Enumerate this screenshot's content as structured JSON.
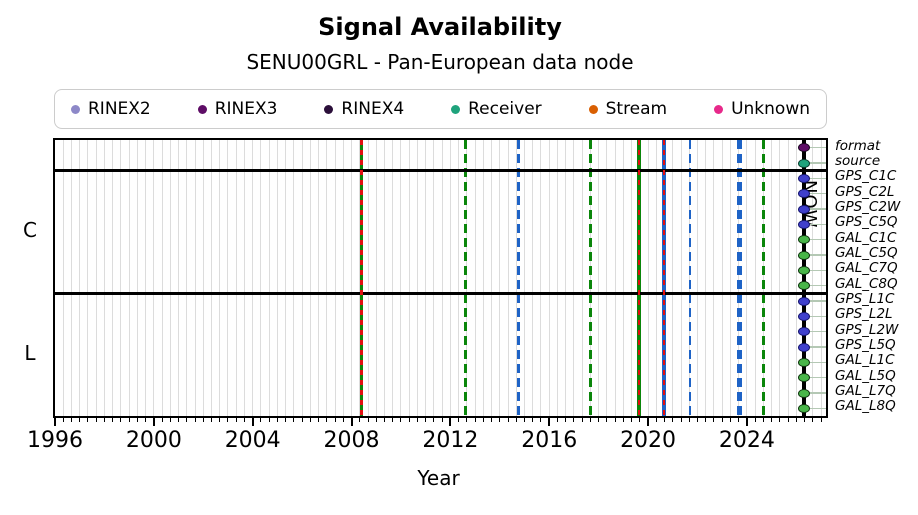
{
  "title": "Signal Availability",
  "subtitle": "SENU00GRL - Pan-European data node",
  "xlabel": "Year",
  "now_label": "NOW",
  "legend": {
    "items": [
      {
        "label": "RINEX2",
        "color": "#8d88c8"
      },
      {
        "label": "RINEX3",
        "color": "#5e0d66"
      },
      {
        "label": "RINEX4",
        "color": "#2b0f3a"
      },
      {
        "label": "Receiver",
        "color": "#1fa37c"
      },
      {
        "label": "Stream",
        "color": "#d95f02"
      },
      {
        "label": "Unknown",
        "color": "#e7298a"
      }
    ]
  },
  "chart_data": {
    "type": "timeline",
    "x_axis": {
      "label": "Year",
      "min": 1996,
      "max": 2027.2,
      "major_ticks": [
        1996,
        2000,
        2004,
        2008,
        2012,
        2016,
        2020,
        2024
      ],
      "minor_step_years": 0.3333,
      "grid": true
    },
    "now_year": 2026.3,
    "palette": {
      "green_line": "#0b860b",
      "blue_line": "#1e63c6",
      "red_overlay": "#e21010",
      "grid": "#dcdcdc",
      "connector": "#b4c8b4"
    },
    "marker_styles": {
      "format": {
        "fill": "#5e0d66",
        "edge": "#1a0520"
      },
      "source": {
        "fill": "#1fa37c",
        "edge": "#073b2c"
      },
      "gps": {
        "fill": "#4040cc",
        "edge": "#14146e"
      },
      "gal": {
        "fill": "#49b649",
        "edge": "#0d330d"
      }
    },
    "rows": [
      {
        "label": "format",
        "group": "",
        "marker": "format"
      },
      {
        "label": "source",
        "group": "",
        "marker": "source"
      },
      {
        "label": "GPS_C1C",
        "group": "C",
        "marker": "gps"
      },
      {
        "label": "GPS_C2L",
        "group": "C",
        "marker": "gps"
      },
      {
        "label": "GPS_C2W",
        "group": "C",
        "marker": "gps"
      },
      {
        "label": "GPS_C5Q",
        "group": "C",
        "marker": "gps"
      },
      {
        "label": "GAL_C1C",
        "group": "C",
        "marker": "gal"
      },
      {
        "label": "GAL_C5Q",
        "group": "C",
        "marker": "gal"
      },
      {
        "label": "GAL_C7Q",
        "group": "C",
        "marker": "gal"
      },
      {
        "label": "GAL_C8Q",
        "group": "C",
        "marker": "gal"
      },
      {
        "label": "GPS_L1C",
        "group": "L",
        "marker": "gps"
      },
      {
        "label": "GPS_L2L",
        "group": "L",
        "marker": "gps"
      },
      {
        "label": "GPS_L2W",
        "group": "L",
        "marker": "gps"
      },
      {
        "label": "GPS_L5Q",
        "group": "L",
        "marker": "gps"
      },
      {
        "label": "GAL_L1C",
        "group": "L",
        "marker": "gal"
      },
      {
        "label": "GAL_L5Q",
        "group": "L",
        "marker": "gal"
      },
      {
        "label": "GAL_L7Q",
        "group": "L",
        "marker": "gal"
      },
      {
        "label": "GAL_L8Q",
        "group": "L",
        "marker": "gal"
      }
    ],
    "events": [
      {
        "year": 2008.4,
        "color": "green",
        "style": "solid",
        "width": 3.5,
        "red_overlay": true
      },
      {
        "year": 2012.63,
        "color": "green",
        "style": "dashed",
        "width": 3,
        "red_overlay": false
      },
      {
        "year": 2014.74,
        "color": "blue",
        "style": "dashed",
        "width": 3,
        "red_overlay": false
      },
      {
        "year": 2017.69,
        "color": "green",
        "style": "dashed",
        "width": 3,
        "red_overlay": false
      },
      {
        "year": 2019.63,
        "color": "green",
        "style": "solid",
        "width": 3.5,
        "red_overlay": true
      },
      {
        "year": 2020.64,
        "color": "blue",
        "style": "solid",
        "width": 4,
        "red_overlay": true
      },
      {
        "year": 2021.7,
        "color": "blue",
        "style": "dashed",
        "width": 2.5,
        "red_overlay": false
      },
      {
        "year": 2023.68,
        "color": "blue",
        "style": "dashed",
        "width": 5,
        "red_overlay": false
      },
      {
        "year": 2024.69,
        "color": "green",
        "style": "dashed",
        "width": 3,
        "red_overlay": false
      }
    ]
  }
}
